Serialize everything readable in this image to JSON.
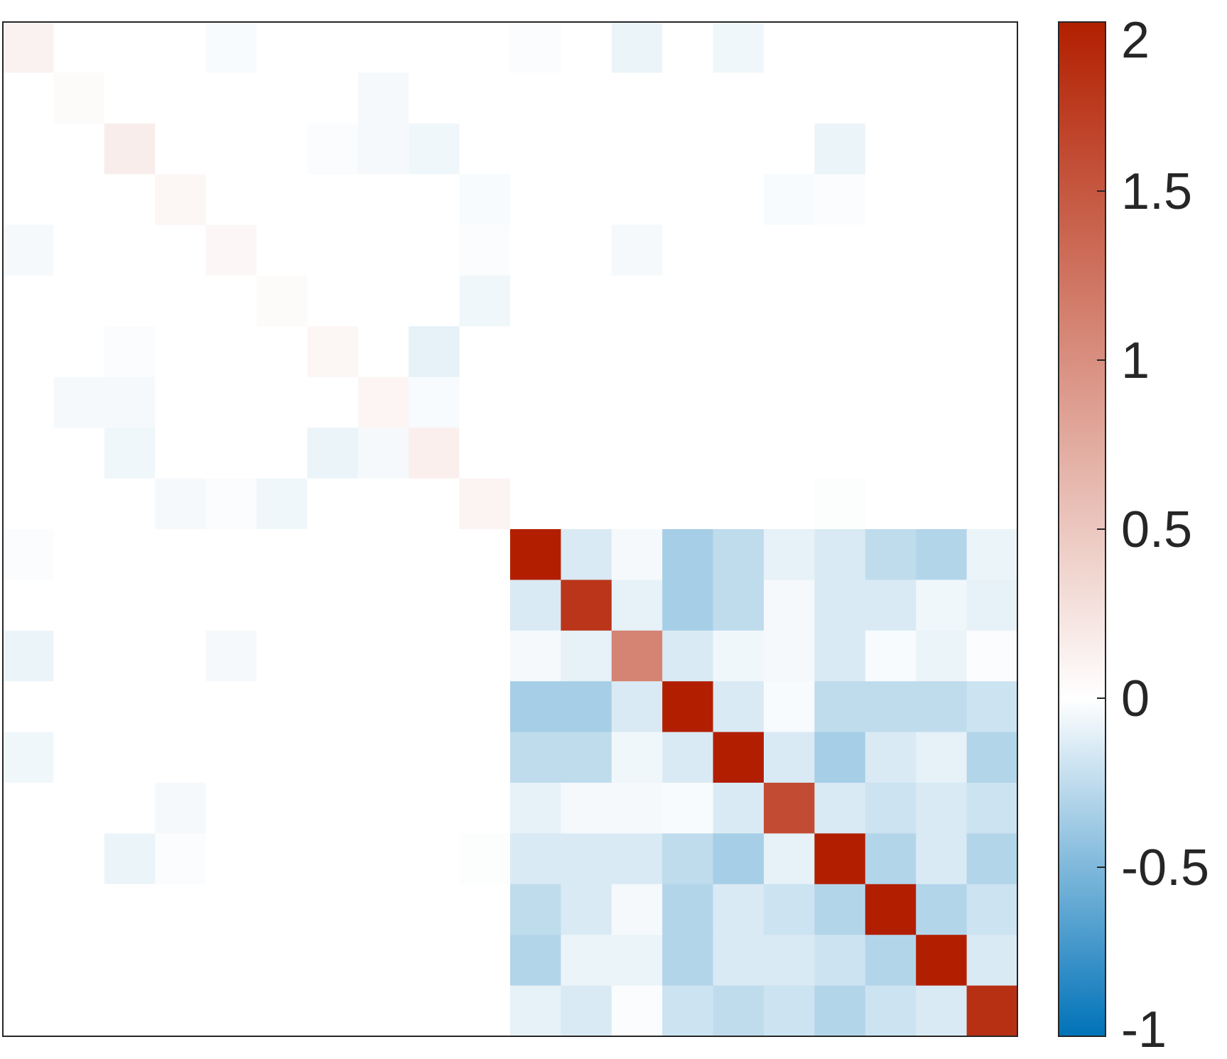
{
  "chart_data": {
    "type": "heatmap",
    "title": "",
    "xlabel": "",
    "ylabel": "",
    "n_rows": 20,
    "n_cols": 20,
    "colorbar": {
      "range": [
        -1,
        2
      ],
      "ticks": [
        2,
        1.5,
        1,
        0.5,
        0,
        -0.5,
        -1
      ],
      "tick_labels": [
        "2",
        "1.5",
        "1",
        "0.5",
        "0",
        "-0.5",
        "-1"
      ],
      "colors": {
        "negative_end": "#0072b8",
        "zero": "#ffffff",
        "positive_end": "#b21f00"
      }
    },
    "matrix": [
      [
        0.12,
        0,
        0,
        0,
        -0.03,
        0,
        0,
        0,
        0,
        0,
        -0.02,
        0,
        -0.08,
        0,
        -0.06,
        0,
        0,
        0,
        0,
        0
      ],
      [
        0,
        0.04,
        0,
        0,
        0,
        0,
        0,
        -0.04,
        0,
        0,
        0,
        0,
        0,
        0,
        0,
        0,
        0,
        0,
        0,
        0
      ],
      [
        0,
        0,
        0.16,
        0,
        0,
        0,
        -0.02,
        -0.04,
        -0.06,
        0,
        0,
        0,
        0,
        0,
        0,
        0,
        -0.08,
        0,
        0,
        0
      ],
      [
        0,
        0,
        0,
        0.08,
        0,
        0,
        0,
        0,
        0,
        -0.03,
        0,
        0,
        0,
        0,
        0,
        -0.03,
        -0.02,
        0,
        0,
        0
      ],
      [
        -0.04,
        0,
        0,
        0,
        0.07,
        0,
        0,
        0,
        0,
        -0.02,
        0,
        0,
        -0.04,
        0,
        0,
        0,
        0,
        0,
        0,
        0
      ],
      [
        0,
        0,
        0,
        0,
        0,
        0.04,
        0,
        0,
        0,
        -0.06,
        0,
        0,
        0,
        0,
        0,
        0,
        0,
        0,
        0,
        0
      ],
      [
        0,
        0,
        -0.02,
        0,
        0,
        0,
        0.08,
        0,
        -0.1,
        0,
        0,
        0,
        0,
        0,
        0,
        0,
        0,
        0,
        0,
        0
      ],
      [
        0,
        -0.04,
        -0.04,
        0,
        0,
        0,
        0,
        0.09,
        -0.03,
        0,
        0,
        0,
        0,
        0,
        0,
        0,
        0,
        0,
        0,
        0
      ],
      [
        0,
        0,
        -0.06,
        0,
        0,
        0,
        -0.08,
        -0.04,
        0.14,
        0,
        0,
        0,
        0,
        0,
        0,
        0,
        0,
        0,
        0,
        0
      ],
      [
        0,
        0,
        0,
        -0.04,
        -0.02,
        -0.06,
        0,
        0,
        0,
        0.1,
        0,
        0,
        0,
        0,
        0,
        0,
        -0.01,
        0,
        0,
        0
      ],
      [
        -0.02,
        0,
        0,
        0,
        0,
        0,
        0,
        0,
        0,
        0,
        2,
        -0.15,
        -0.04,
        -0.35,
        -0.25,
        -0.1,
        -0.15,
        -0.25,
        -0.3,
        -0.08
      ],
      [
        0,
        0,
        0,
        0,
        0,
        0,
        0,
        0,
        0,
        0,
        -0.15,
        1.8,
        -0.1,
        -0.35,
        -0.25,
        -0.04,
        -0.15,
        -0.15,
        -0.06,
        -0.1
      ],
      [
        -0.08,
        0,
        0,
        0,
        -0.04,
        0,
        0,
        0,
        0,
        0,
        -0.04,
        -0.1,
        1.1,
        -0.15,
        -0.06,
        -0.04,
        -0.15,
        -0.03,
        -0.08,
        -0.02
      ],
      [
        0,
        0,
        0,
        0,
        0,
        0,
        0,
        0,
        0,
        0,
        -0.35,
        -0.35,
        -0.15,
        2,
        -0.15,
        -0.03,
        -0.25,
        -0.25,
        -0.25,
        -0.2
      ],
      [
        -0.06,
        0,
        0,
        0,
        0,
        0,
        0,
        0,
        0,
        0,
        -0.25,
        -0.25,
        -0.06,
        -0.15,
        2,
        -0.15,
        -0.35,
        -0.15,
        -0.1,
        -0.3
      ],
      [
        0,
        0,
        0,
        -0.04,
        0,
        0,
        0,
        0,
        0,
        0,
        -0.1,
        -0.04,
        -0.04,
        -0.03,
        -0.15,
        1.6,
        -0.15,
        -0.2,
        -0.15,
        -0.2
      ],
      [
        0,
        0,
        -0.08,
        -0.02,
        0,
        0,
        0,
        0,
        0,
        -0.01,
        -0.15,
        -0.15,
        -0.15,
        -0.25,
        -0.35,
        -0.1,
        2,
        -0.3,
        -0.15,
        -0.3
      ],
      [
        0,
        0,
        0,
        0,
        0,
        0,
        0,
        0,
        0,
        0,
        -0.25,
        -0.15,
        -0.04,
        -0.3,
        -0.15,
        -0.2,
        -0.3,
        2,
        -0.3,
        -0.2
      ],
      [
        0,
        0,
        0,
        0,
        0,
        0,
        0,
        0,
        0,
        0,
        -0.3,
        -0.08,
        -0.08,
        -0.3,
        -0.15,
        -0.15,
        -0.2,
        -0.3,
        2,
        -0.15
      ],
      [
        0,
        0,
        0,
        0,
        0,
        0,
        0,
        0,
        0,
        0,
        -0.1,
        -0.15,
        -0.02,
        -0.2,
        -0.25,
        -0.2,
        -0.3,
        -0.2,
        -0.15,
        1.85
      ]
    ]
  }
}
